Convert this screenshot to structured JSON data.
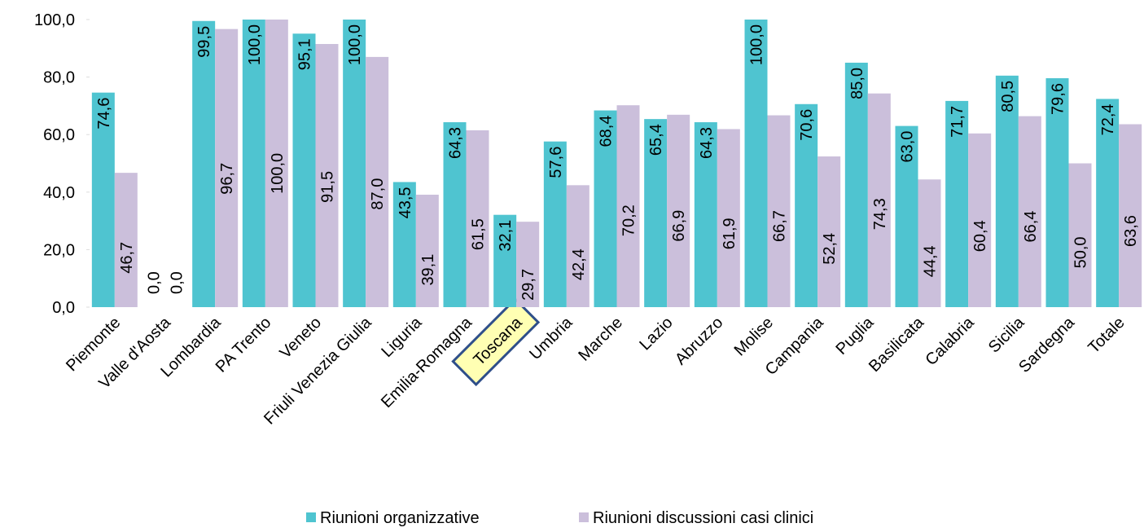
{
  "chart_data": {
    "type": "bar",
    "categories": [
      "Piemonte",
      "Valle d'Aosta",
      "Lombardia",
      "PA Trento",
      "Veneto",
      "Friuli Venezia Giulia",
      "Liguria",
      "Emilia-Romagna",
      "Toscana",
      "Umbria",
      "Marche",
      "Lazio",
      "Abruzzo",
      "Molise",
      "Campania",
      "Puglia",
      "Basilicata",
      "Calabria",
      "Sicilia",
      "Sardegna",
      "Totale"
    ],
    "series": [
      {
        "name": "Riunioni organizzative",
        "color": "#4fc4d0",
        "values": [
          74.6,
          0,
          99.5,
          100,
          95.1,
          100,
          43.5,
          64.3,
          32.1,
          57.6,
          68.4,
          65.4,
          64.3,
          100,
          70.6,
          85,
          63,
          71.7,
          80.5,
          79.6,
          72.4
        ],
        "value_labels": [
          "74,6",
          "0,0",
          "99,5",
          "100,0",
          "95,1",
          "100,0",
          "43,5",
          "64,3",
          "32,1",
          "57,6",
          "68,4",
          "65,4",
          "64,3",
          "100,0",
          "70,6",
          "85,0",
          "63,0",
          "71,7",
          "80,5",
          "79,6",
          "72,4"
        ]
      },
      {
        "name": "Riunioni discussioni casi clinici",
        "color": "#cbbfdb",
        "values": [
          46.7,
          0,
          96.7,
          100,
          91.5,
          87,
          39.1,
          61.5,
          29.7,
          42.4,
          70.2,
          66.9,
          61.9,
          66.7,
          52.4,
          74.3,
          44.4,
          60.4,
          66.4,
          50,
          63.6
        ],
        "value_labels": [
          "46,7",
          "0,0",
          "96,7",
          "100,0",
          "91,5",
          "87,0",
          "39,1",
          "61,5",
          "29,7",
          "42,4",
          "70,2",
          "66,9",
          "61,9",
          "66,7",
          "52,4",
          "74,3",
          "44,4",
          "60,4",
          "66,4",
          "50,0",
          "63,6"
        ]
      }
    ],
    "ylim": [
      0,
      100
    ],
    "yticks": [
      {
        "value": 0,
        "label": "0,0"
      },
      {
        "value": 20,
        "label": "20,0"
      },
      {
        "value": 40,
        "label": "40,0"
      },
      {
        "value": 60,
        "label": "60,0"
      },
      {
        "value": 80,
        "label": "80,0"
      },
      {
        "value": 100,
        "label": "100,0"
      }
    ],
    "highlight_category": 8
  }
}
